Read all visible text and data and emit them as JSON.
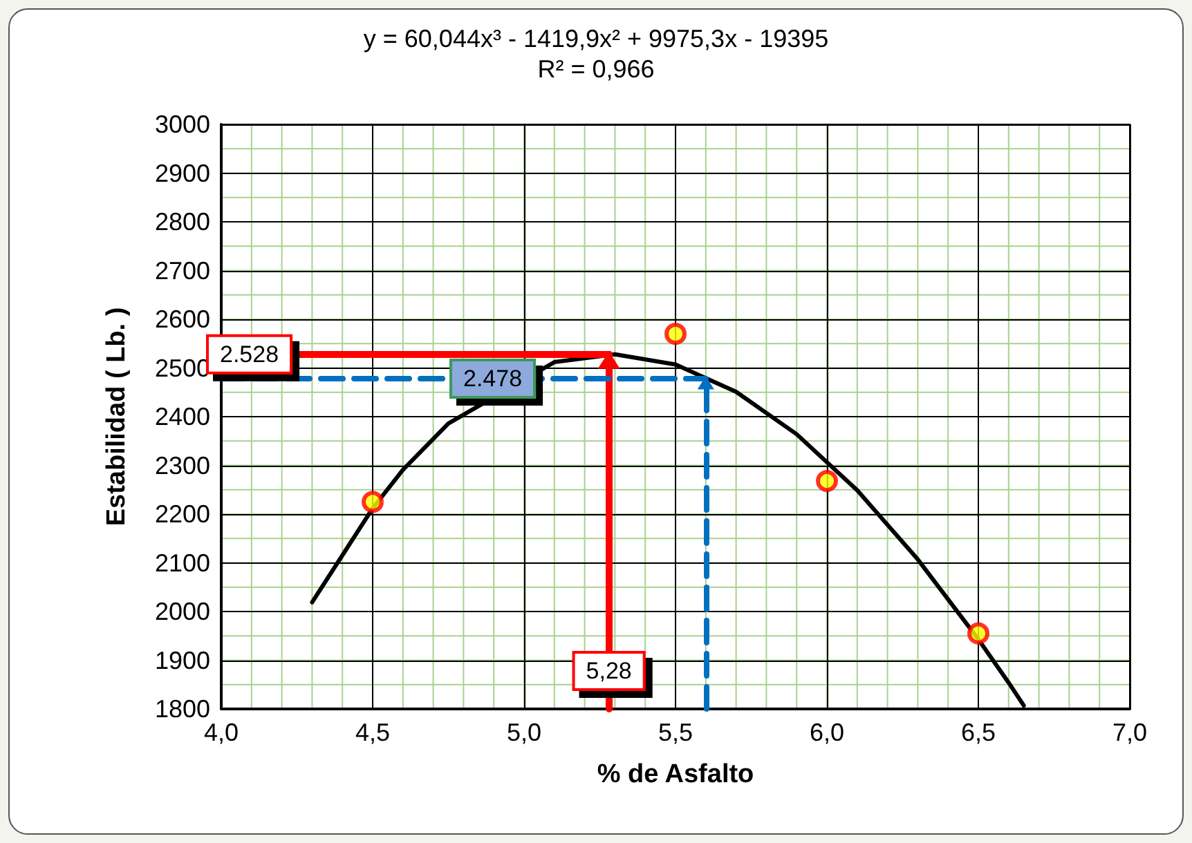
{
  "chart_data": {
    "type": "scatter",
    "title": "y = 60,044x³ - 1419,9x² + 9975,3x - 19395",
    "subtitle": "R² = 0,966",
    "xlabel": "% de Asfalto",
    "ylabel": "Estabilidad ( Lb. )",
    "series": [
      {
        "color": "#ffff00",
        "x": [
          4.5,
          5.5,
          6.0,
          6.5
        ],
        "values": [
          2225,
          2570,
          2268,
          1955
        ],
        "marker": "circle"
      },
      {
        "type": "line",
        "color": "#000000",
        "marker": "none",
        "line_style": "solid",
        "x": [
          4.3,
          4.5,
          4.6,
          4.75,
          5.1,
          5.3,
          5.5,
          5.7,
          5.9,
          6.1,
          6.3,
          6.5,
          6.6,
          6.65
        ],
        "values": [
          2019,
          2212,
          2291,
          2386,
          2512,
          2528,
          2507,
          2451,
          2364,
          2249,
          2107,
          1943,
          1854,
          1807
        ]
      }
    ],
    "xlim": [
      4.0,
      7.0
    ],
    "xticks": [
      {
        "value": 4.0,
        "label": "4,0"
      },
      {
        "value": 4.5,
        "label": "4,5"
      },
      {
        "value": 5.0,
        "label": "5,0"
      },
      {
        "value": 5.5,
        "label": "5,5"
      },
      {
        "value": 6.0,
        "label": "6,0"
      },
      {
        "value": 6.5,
        "label": "6,5"
      },
      {
        "value": 7.0,
        "label": "7,0"
      }
    ],
    "ylim": [
      1800,
      3000
    ],
    "yticks": [
      1800,
      1900,
      2000,
      2100,
      2200,
      2300,
      2400,
      2500,
      2600,
      2700,
      2800,
      2900,
      3000
    ],
    "ref_lines": [
      {
        "axis": "y",
        "value": 2528,
        "label": "2.528",
        "color": "#ff0000",
        "line_style": "solid"
      },
      {
        "axis": "x",
        "value": 5.28,
        "label": "5,28",
        "color": "#ff0000",
        "line_style": "solid"
      },
      {
        "axis": "y",
        "value": 2478,
        "label": "2.478",
        "color": "#0070c0",
        "line_style": "dashed"
      },
      {
        "axis": "x",
        "value": 5.6,
        "color": "#0070c0",
        "line_style": "dashed"
      }
    ],
    "grid": true
  }
}
